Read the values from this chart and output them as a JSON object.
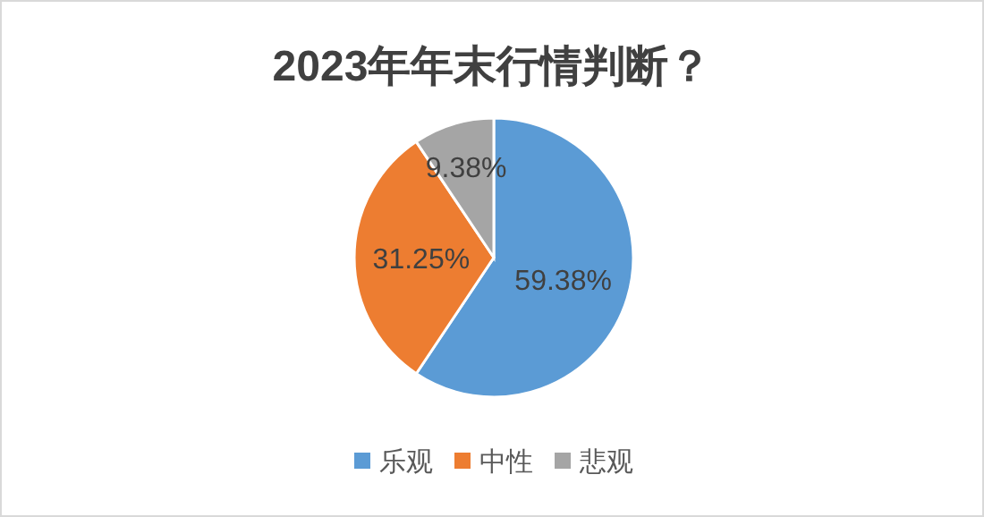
{
  "chart_data": {
    "type": "pie",
    "title": "2023年年末行情判断？",
    "categories": [
      "乐观",
      "中性",
      "悲观"
    ],
    "values": [
      59.38,
      31.25,
      9.38
    ],
    "value_labels": [
      "59.38%",
      "31.25%",
      "9.38%"
    ],
    "colors": [
      "#5b9bd5",
      "#ed7d31",
      "#a5a5a5"
    ],
    "legend": "bottom"
  }
}
